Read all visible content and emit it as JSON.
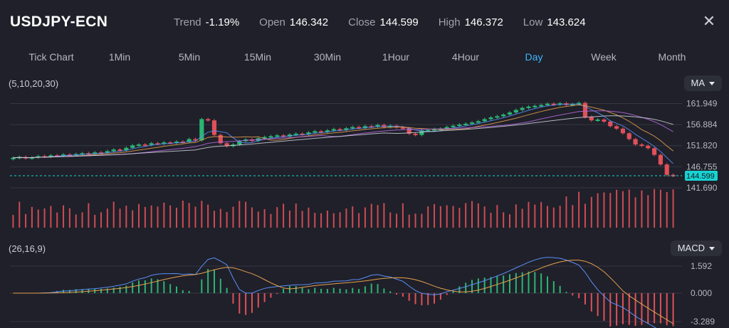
{
  "header": {
    "symbol": "USDJPY-ECN",
    "stats": [
      {
        "label": "Trend",
        "value": "-1.19%"
      },
      {
        "label": "Open",
        "value": "146.342"
      },
      {
        "label": "Close",
        "value": "144.599"
      },
      {
        "label": "High",
        "value": "146.372"
      },
      {
        "label": "Low",
        "value": "143.624"
      }
    ],
    "close_icon": "close-icon"
  },
  "tabs": [
    {
      "label": "Tick Chart",
      "active": false
    },
    {
      "label": "1Min",
      "active": false
    },
    {
      "label": "5Min",
      "active": false
    },
    {
      "label": "15Min",
      "active": false
    },
    {
      "label": "30Min",
      "active": false
    },
    {
      "label": "1Hour",
      "active": false
    },
    {
      "label": "4Hour",
      "active": false
    },
    {
      "label": "Day",
      "active": true
    },
    {
      "label": "Week",
      "active": false
    },
    {
      "label": "Month",
      "active": false
    }
  ],
  "main_panel": {
    "params": "(5,10,20,30)",
    "indicator": "MA"
  },
  "macd_panel": {
    "params": "(26,16,9)",
    "indicator": "MACD"
  },
  "colors": {
    "background": "#1f2029",
    "up": "#2bb673",
    "down": "#e0505a",
    "accent": "#3fb6ff",
    "ma5": "#5b8ff9",
    "ma10": "#e6a04d",
    "ma20": "#b86adf",
    "ma30": "#cfd2da",
    "current_price": "#19d3d3"
  },
  "chart_data": [
    {
      "type": "candlestick",
      "title": "",
      "y_ticks": [
        161.949,
        156.884,
        151.82,
        146.755,
        141.69
      ],
      "ylim": [
        141.0,
        164.6
      ],
      "current_price": 144.599,
      "ohlc_approx_note": "",
      "close": [
        148.9,
        149.1,
        148.8,
        149.0,
        149.3,
        149.2,
        149.5,
        149.4,
        149.7,
        149.6,
        149.8,
        150.0,
        149.9,
        150.2,
        150.1,
        150.5,
        150.9,
        150.7,
        151.3,
        151.9,
        152.1,
        152.0,
        152.4,
        152.3,
        152.6,
        152.5,
        152.8,
        152.7,
        153.4,
        153.1,
        158.2,
        157.9,
        154.4,
        152.4,
        151.7,
        152.1,
        152.9,
        153.3,
        153.0,
        153.6,
        153.9,
        154.1,
        154.3,
        154.0,
        154.5,
        154.7,
        154.6,
        155.0,
        155.3,
        155.1,
        155.5,
        155.8,
        155.6,
        156.0,
        156.3,
        156.1,
        156.5,
        156.4,
        156.8,
        156.3,
        156.6,
        156.2,
        156.0,
        154.7,
        154.4,
        155.5,
        155.6,
        155.8,
        155.9,
        156.3,
        156.6,
        156.9,
        157.1,
        157.4,
        157.7,
        158.2,
        158.6,
        158.9,
        159.3,
        159.8,
        160.4,
        160.9,
        161.2,
        161.4,
        161.6,
        161.9,
        161.7,
        162.0,
        161.6,
        161.8,
        162.1,
        158.7,
        157.9,
        158.1,
        157.6,
        156.5,
        155.9,
        154.8,
        153.4,
        152.1,
        151.8,
        151.2,
        149.6,
        147.3,
        144.8,
        144.6
      ],
      "ma_series": [
        {
          "name": "MA5",
          "values": []
        },
        {
          "name": "MA10",
          "values": []
        },
        {
          "name": "MA20",
          "values": []
        },
        {
          "name": "MA30",
          "values": []
        }
      ],
      "volume_note": ""
    },
    {
      "type": "line",
      "title": "",
      "y_ticks": [
        1.592,
        0.0,
        -3.289
      ],
      "series": [
        {
          "name": "DIF",
          "values": []
        },
        {
          "name": "DEA",
          "values": []
        },
        {
          "name": "MACD",
          "values": []
        }
      ]
    }
  ]
}
